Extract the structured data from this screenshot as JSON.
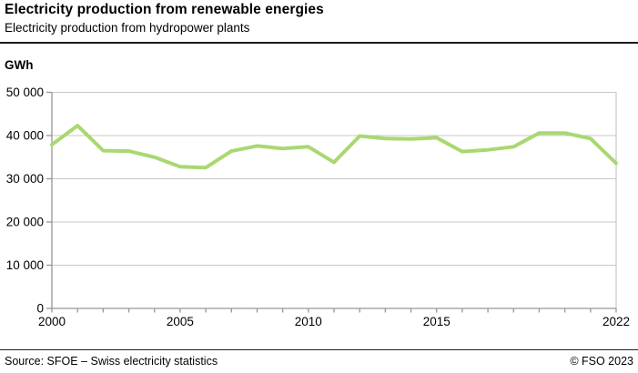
{
  "header": {
    "title": "Electricity production from renewable energies",
    "subtitle": "Electricity production from hydropower plants"
  },
  "chart_data": {
    "type": "line",
    "title": "Electricity production from hydropower plants",
    "unit_label": "GWh",
    "x": [
      2000,
      2001,
      2002,
      2003,
      2004,
      2005,
      2006,
      2007,
      2008,
      2009,
      2010,
      2011,
      2012,
      2013,
      2014,
      2015,
      2016,
      2017,
      2018,
      2019,
      2020,
      2021,
      2022
    ],
    "series": [
      {
        "name": "Electricity production from hydropower plants (GWh)",
        "values": [
          37900,
          42300,
          36500,
          36400,
          35000,
          32800,
          32600,
          36400,
          37600,
          37000,
          37400,
          33800,
          39900,
          39300,
          39200,
          39500,
          36300,
          36700,
          37400,
          40600,
          40600,
          39300,
          33600
        ]
      }
    ],
    "ylim": [
      0,
      50000
    ],
    "ytick_step": 10000,
    "ytick_labels": [
      "0",
      "10 000",
      "20 000",
      "30 000",
      "40 000",
      "50 000"
    ],
    "xlim": [
      2000,
      2022
    ],
    "xtick_every_year": true,
    "xtick_labeled_years": [
      "2000",
      "2005",
      "2010",
      "2015",
      "2022"
    ],
    "grid": "horizontal",
    "legend": "none",
    "line_color": "#a9d870",
    "grid_color": "#c8c8c8",
    "axis_color": "#969696",
    "label_color": "#000000"
  },
  "footer": {
    "source": "Source: SFOE – Swiss electricity statistics",
    "copyright": "© FSO 2023"
  }
}
